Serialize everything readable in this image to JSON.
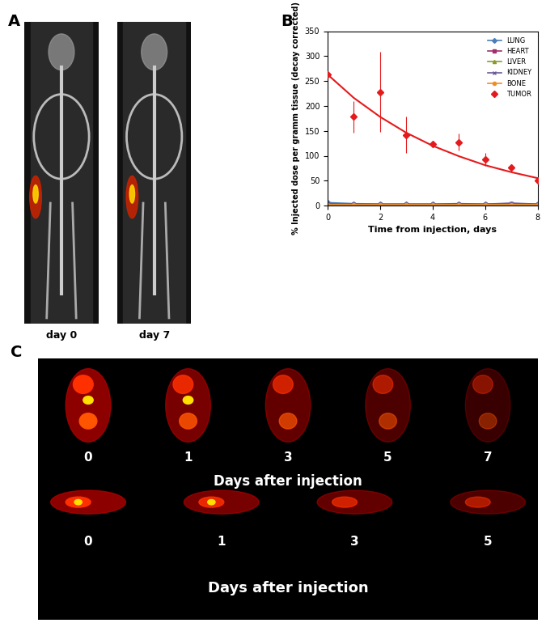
{
  "panel_labels": [
    "A",
    "B",
    "C"
  ],
  "panel_a": {
    "images": [
      {
        "label": "day 0"
      },
      {
        "label": "day 7"
      }
    ]
  },
  "chart_data": {
    "type": "line",
    "xlabel": "Time from injection, days",
    "ylabel": "% Injected dose per gramm tissue (decay corrected)",
    "xlim": [
      0,
      8
    ],
    "xticks": [
      0,
      2,
      4,
      6,
      8
    ],
    "ylim": [
      0,
      350
    ],
    "yticks": [
      0,
      50,
      100,
      150,
      200,
      250,
      300,
      350
    ],
    "legend": "upper right",
    "x": [
      0,
      1,
      2,
      3,
      4,
      5,
      6,
      7,
      8
    ],
    "series": [
      {
        "name": "LUNG",
        "color": "#4a7ebb",
        "marker": "diamond",
        "line_style": "solid",
        "values": [
          6,
          4,
          3,
          3,
          3,
          3,
          3,
          4,
          3
        ]
      },
      {
        "name": "HEART",
        "color": "#a0306a",
        "marker": "square",
        "line_style": "solid",
        "values": [
          1,
          1,
          1,
          1,
          1,
          1,
          1,
          1,
          1
        ]
      },
      {
        "name": "LIVER",
        "color": "#8a9a2a",
        "marker": "triangle",
        "line_style": "solid",
        "values": [
          2,
          2,
          2,
          2,
          2,
          2,
          2,
          2,
          2
        ]
      },
      {
        "name": "KIDNEY",
        "color": "#6a5a9a",
        "marker": "x",
        "line_style": "solid",
        "values": [
          4,
          3,
          3,
          3,
          3,
          4,
          3,
          5,
          3
        ]
      },
      {
        "name": "BONE",
        "color": "#f08c28",
        "marker": "circle",
        "line_style": "solid",
        "values": [
          1,
          1,
          1,
          1,
          1,
          1,
          1,
          1,
          1
        ]
      },
      {
        "name": "TUMOR",
        "color": "#e41a1c",
        "marker": "diamond",
        "line_style": "none",
        "values": [
          263,
          178,
          228,
          142,
          124,
          127,
          93,
          76,
          51
        ],
        "errors": [
          0,
          31,
          80,
          36,
          3,
          17,
          13,
          3,
          3
        ]
      }
    ],
    "fit": {
      "x": [
        0,
        1,
        2,
        3,
        4,
        5,
        6,
        7,
        8
      ],
      "values": [
        263,
        216,
        178,
        146,
        120,
        99,
        81,
        67,
        55
      ],
      "color": "#e41a1c"
    }
  },
  "panel_c": {
    "rows": [
      {
        "days": [
          0,
          1,
          3,
          5,
          7
        ],
        "caption": "Days after injection"
      },
      {
        "days": [
          0,
          1,
          3,
          5
        ],
        "caption": "Days after injection"
      }
    ]
  }
}
